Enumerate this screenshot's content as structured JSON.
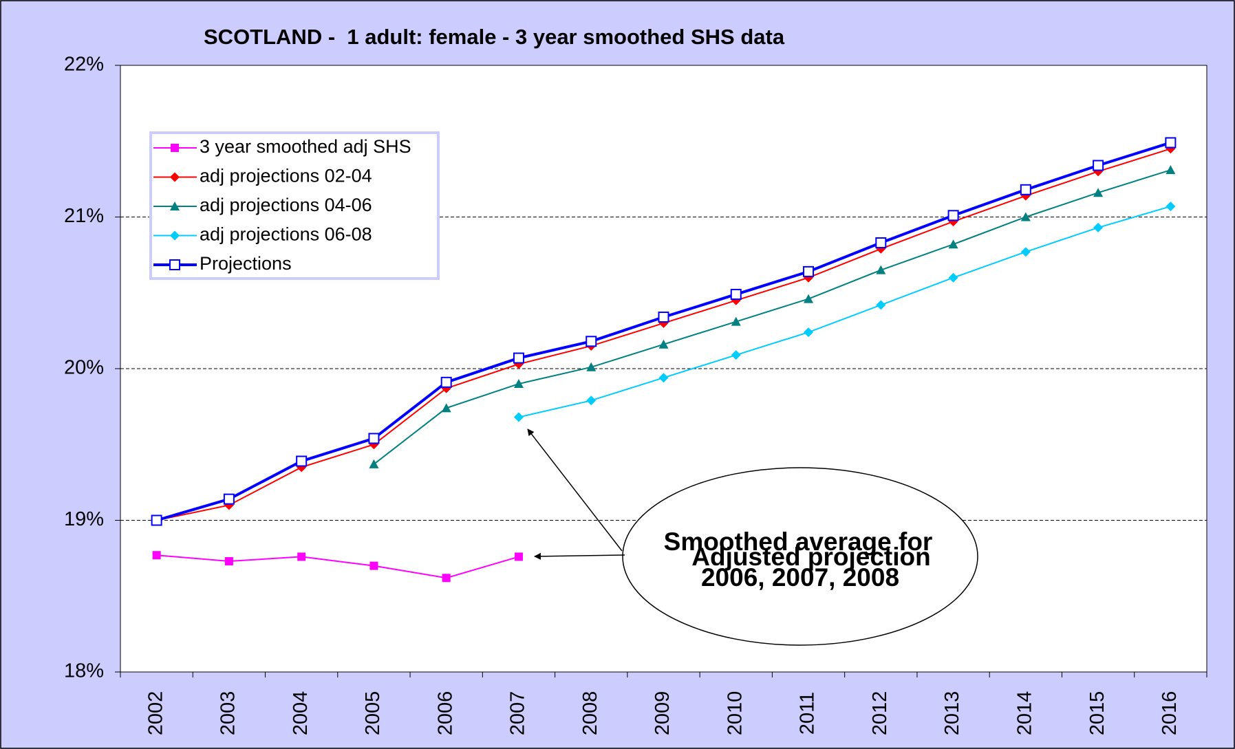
{
  "chart_data": {
    "type": "line",
    "title": "SCOTLAND -  1 adult: female - 3 year smoothed SHS data",
    "categories": [
      "2002",
      "2003",
      "2004",
      "2005",
      "2006",
      "2007",
      "2008",
      "2009",
      "2010",
      "2011",
      "2012",
      "2013",
      "2014",
      "2015",
      "2016"
    ],
    "ylim": [
      18,
      22
    ],
    "yticks": [
      {
        "value": 18,
        "label": "18%"
      },
      {
        "value": 19,
        "label": "19%"
      },
      {
        "value": 20,
        "label": "20%"
      },
      {
        "value": 21,
        "label": "21%"
      },
      {
        "value": 22,
        "label": "22%"
      }
    ],
    "grid": true,
    "legend": "upper left",
    "series": [
      {
        "name": "3 year smoothed adj SHS",
        "color": "#ff00ff",
        "marker": "square",
        "values": [
          18.77,
          18.73,
          18.76,
          18.7,
          18.62,
          18.76,
          null,
          null,
          null,
          null,
          null,
          null,
          null,
          null,
          null
        ]
      },
      {
        "name": "adj projections 02-04",
        "color": "#ff0000",
        "marker": "diamond",
        "values": [
          19.0,
          19.1,
          19.35,
          19.5,
          19.87,
          20.03,
          20.15,
          20.3,
          20.45,
          20.6,
          20.79,
          20.97,
          21.14,
          21.3,
          21.45
        ]
      },
      {
        "name": "adj projections 04-06",
        "color": "#008080",
        "marker": "triangle",
        "values": [
          null,
          null,
          null,
          19.37,
          19.74,
          19.9,
          20.01,
          20.16,
          20.31,
          20.46,
          20.65,
          20.82,
          21.0,
          21.16,
          21.31
        ]
      },
      {
        "name": "adj projections 06-08",
        "color": "#00ccff",
        "marker": "diamond",
        "values": [
          null,
          null,
          null,
          null,
          null,
          19.68,
          19.79,
          19.94,
          20.09,
          20.24,
          20.42,
          20.6,
          20.77,
          20.93,
          21.07
        ]
      },
      {
        "name": "Projections",
        "color": "#0000ff",
        "marker": "open-square",
        "values": [
          19.0,
          19.14,
          19.39,
          19.54,
          19.91,
          20.07,
          20.18,
          20.34,
          20.49,
          20.64,
          20.83,
          21.01,
          21.18,
          21.34,
          21.49
        ]
      }
    ],
    "annotations": [
      "Smoothed average for",
      "2006, 2007, 2008",
      "Adjusted projection"
    ]
  }
}
